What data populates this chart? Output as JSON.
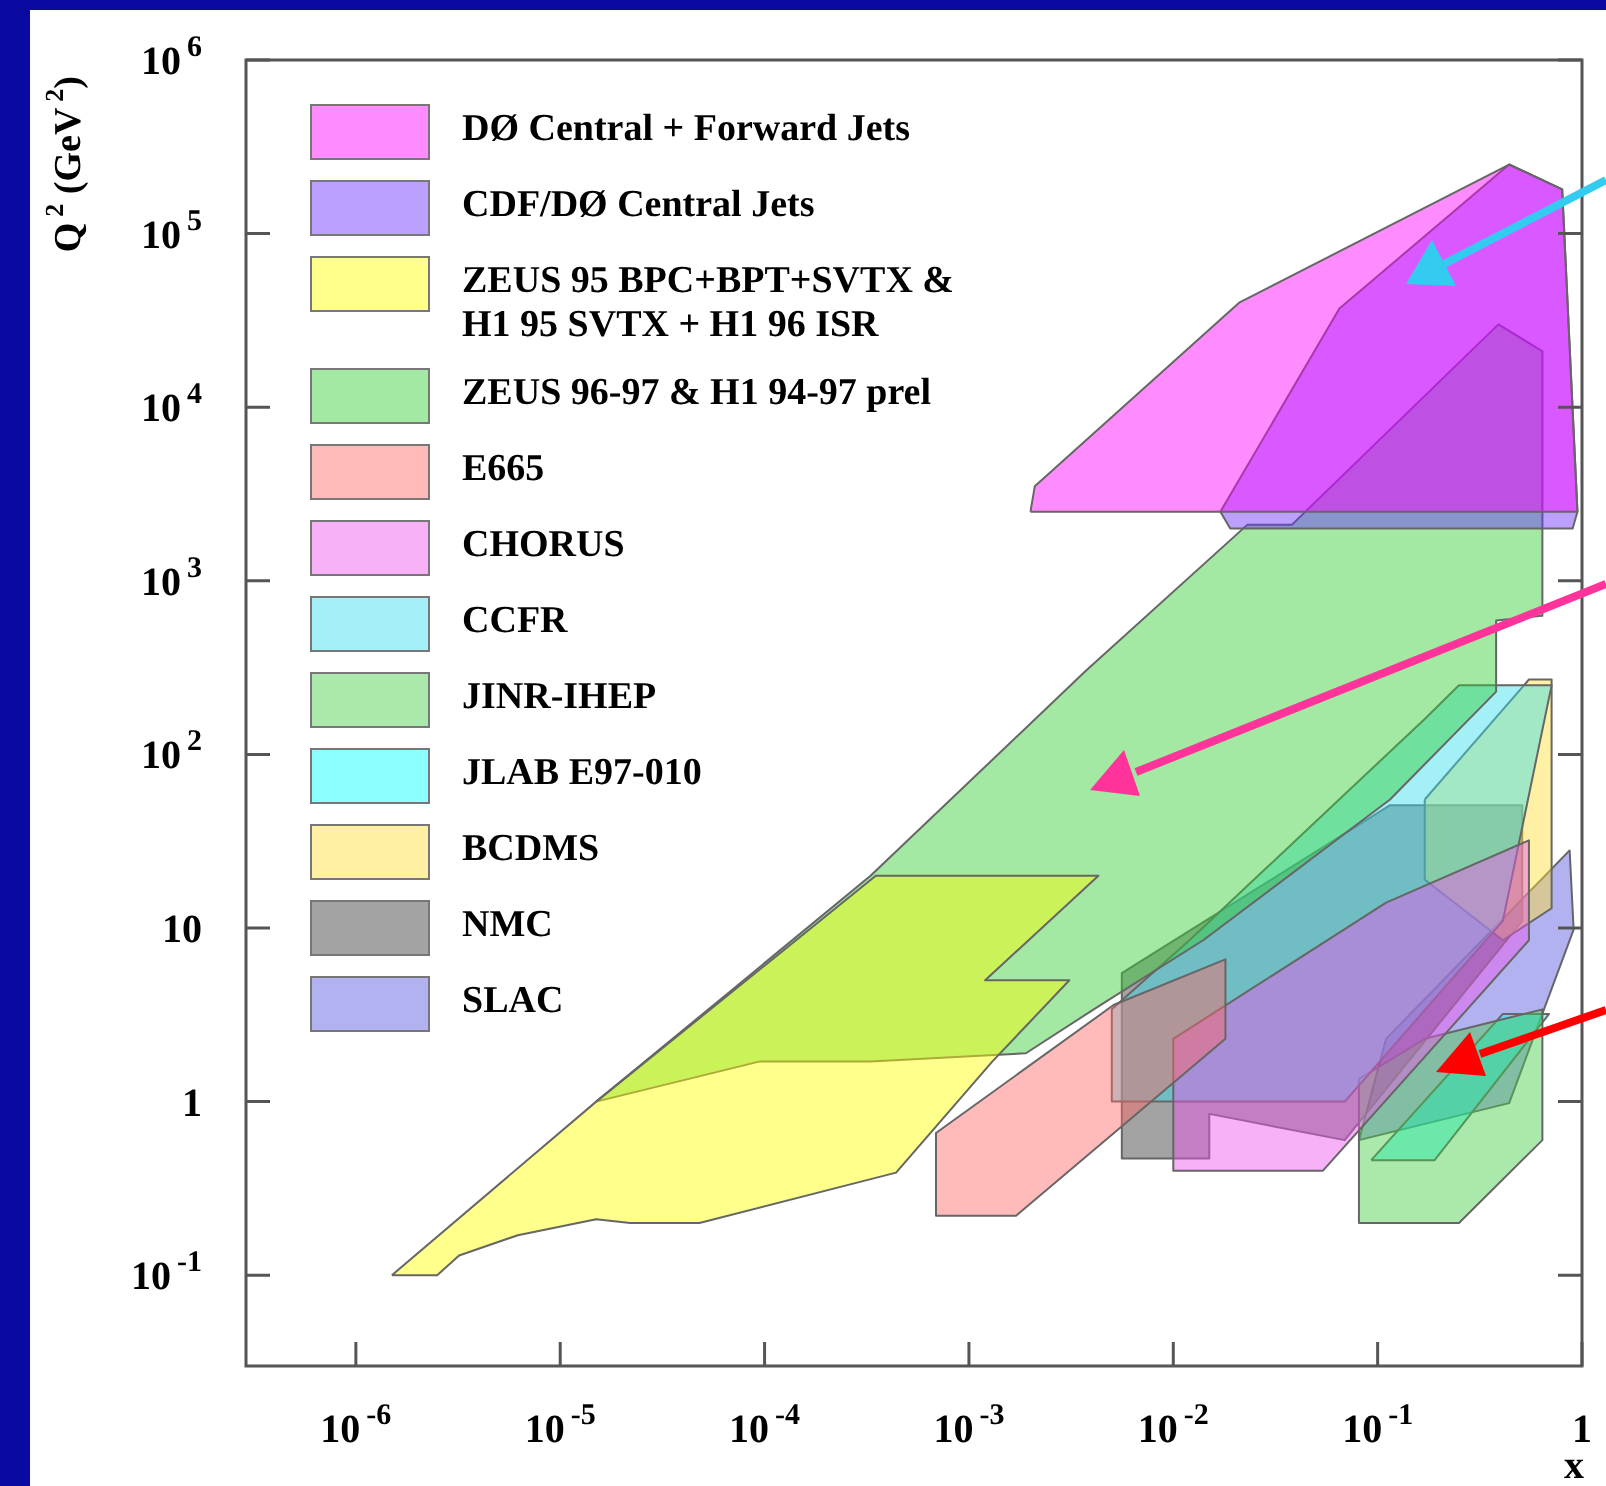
{
  "chart_data": {
    "type": "area",
    "ylabel": "Q$^{2}$ (GeV$^{2}$)",
    "xlabel": "x",
    "log": "xy",
    "legend": "top left",
    "xlim": [
      2.9e-07,
      1
    ],
    "ylim": [
      0.03,
      1000000
    ],
    "xticks": [
      {
        "value": 1e-06,
        "label": "10$^{-6}$"
      },
      {
        "value": 1e-05,
        "label": "10$^{-5}$"
      },
      {
        "value": 0.0001,
        "label": "10$^{-4}$"
      },
      {
        "value": 0.001,
        "label": "10$^{-3}$"
      },
      {
        "value": 0.01,
        "label": "10$^{-2}$"
      },
      {
        "value": 0.1,
        "label": "10$^{-1}$"
      },
      1
    ],
    "yticks": [
      {
        "value": 0.1,
        "label": "10$^{-1}$"
      },
      1,
      10,
      {
        "value": 100,
        "label": "10$^{2}$"
      },
      {
        "value": 1000,
        "label": "10$^{3}$"
      },
      {
        "value": 10000,
        "label": "10$^{4}$"
      },
      {
        "value": 100000,
        "label": "10$^{5}$"
      },
      {
        "value": 1000000,
        "label": "10$^{6}$"
      }
    ],
    "series": [
      {
        "name": "DØ Central + Forward Jets",
        "color": "#ff00ff",
        "x": [
          0.002,
          0.0021,
          0.021,
          0.44,
          0.8,
          0.95
        ],
        "values": [
          2500,
          3500,
          40000,
          250000,
          180000,
          2500
        ]
      },
      {
        "name": "CDF/DØ Central Jets",
        "color": "#6a2cff",
        "x": [
          0.017,
          0.019,
          0.9,
          0.95,
          0.8,
          0.44,
          0.065
        ],
        "values": [
          2500,
          2000,
          2000,
          2500,
          180000,
          250000,
          37000
        ]
      },
      {
        "name": "ZEUS 95 BPC+BPT+SVTX & H1 95 SVTX + H1 96 ISR",
        "color": "#ffff00",
        "x": [
          1.5e-06,
          1.5e-05,
          0.00035,
          0.0043,
          0.0012,
          0.0031,
          0.0013,
          0.00044,
          4.8e-05,
          2.2e-05,
          1.5e-05,
          6.2e-06,
          3.2e-06,
          2.5e-06
        ],
        "values": [
          0.1,
          1,
          20,
          20,
          5,
          5,
          1.7,
          0.39,
          0.2,
          0.2,
          0.21,
          0.17,
          0.13,
          0.1
        ]
      },
      {
        "name": "ZEUS 96-97 & H1 94-97 prel",
        "color": "#33cc33",
        "x": [
          1.5e-05,
          6.6e-05,
          0.00033,
          0.0037,
          0.023,
          0.038,
          0.39,
          0.64,
          0.64,
          0.38,
          0.38,
          0.115,
          0.014,
          0.0044,
          0.0019,
          0.00033,
          9.4e-05
        ],
        "values": [
          1,
          4.2,
          20,
          300,
          2100,
          2100,
          30000,
          21000,
          630,
          590,
          230,
          55,
          8.5,
          3.6,
          1.9,
          1.7,
          1.7
        ]
      },
      {
        "name": "E665",
        "color": "#ff6666",
        "x": [
          0.00069,
          0.00069,
          0.0017,
          0.018,
          0.018,
          0.0051
        ],
        "values": [
          0.66,
          0.22,
          0.22,
          2.3,
          6.6,
          3.6
        ]
      },
      {
        "name": "CHORUS",
        "color": "#ee55ee",
        "x": [
          0.01,
          0.01,
          0.054,
          0.55,
          0.55,
          0.11
        ],
        "values": [
          2.3,
          0.4,
          0.4,
          8.5,
          32,
          14
        ]
      },
      {
        "name": "CCFR",
        "color": "#33ddee",
        "x": [
          0.005,
          0.005,
          0.069,
          0.41,
          0.71,
          0.25,
          0.17,
          0.012
        ],
        "values": [
          3.4,
          1,
          1,
          11,
          250,
          250,
          160,
          8.5
        ]
      },
      {
        "name": "JINR-IHEP",
        "color": "#44cc44",
        "x": [
          0.081,
          0.081,
          0.25,
          0.64,
          0.64,
          0.17
        ],
        "values": [
          1.35,
          0.2,
          0.2,
          0.6,
          3.4,
          2.3
        ]
      },
      {
        "name": "JLAB E97-010",
        "color": "#00ffff",
        "x": [
          0.093,
          0.19,
          0.69,
          0.41
        ],
        "values": [
          0.46,
          0.46,
          3.2,
          3.2
        ]
      },
      {
        "name": "BCDMS",
        "color": "#ffdd33",
        "x": [
          0.17,
          0.55,
          0.71,
          0.71,
          0.41,
          0.17
        ],
        "values": [
          55,
          270,
          270,
          13,
          8.5,
          19
        ]
      },
      {
        "name": "NMC",
        "color": "#333333",
        "x": [
          0.0056,
          0.0056,
          0.015,
          0.015,
          0.069,
          0.51,
          0.51,
          0.115
        ],
        "values": [
          5.5,
          0.47,
          0.47,
          0.85,
          0.6,
          11,
          51,
          51
        ]
      },
      {
        "name": "SLAC",
        "color": "#5555dd",
        "x": [
          0.081,
          0.44,
          0.91,
          0.87,
          0.11
        ],
        "values": [
          0.6,
          0.98,
          9.8,
          28,
          2.3
        ]
      }
    ]
  }
}
